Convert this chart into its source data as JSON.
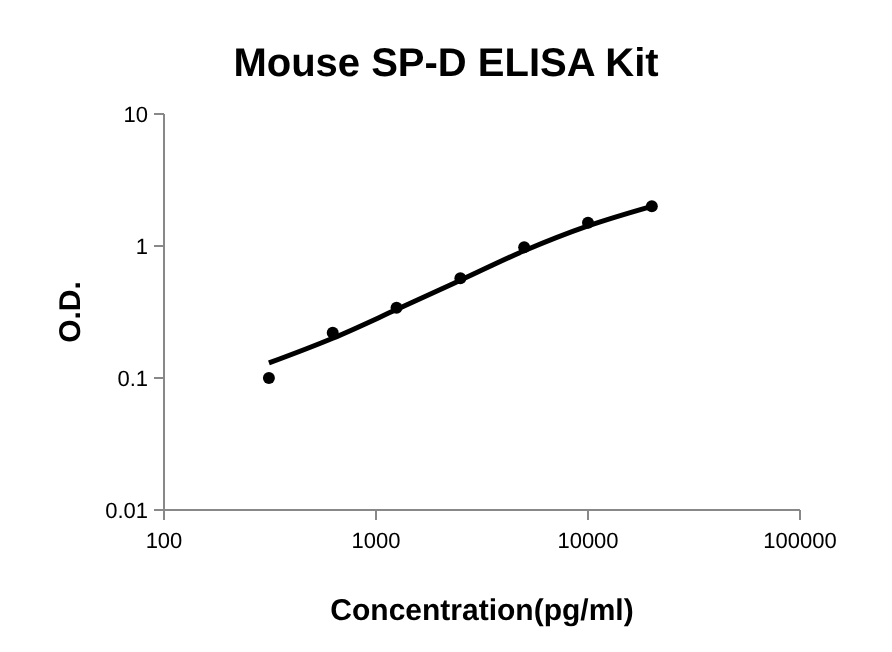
{
  "chart_data": {
    "type": "scatter",
    "title": "Mouse SP-D ELISA Kit",
    "xlabel": "Concentration(pg/ml)",
    "ylabel": "O.D.",
    "log": "xy",
    "xlim": [
      100,
      100000
    ],
    "ylim": [
      0.01,
      10
    ],
    "xticks": [
      100,
      1000,
      10000,
      100000
    ],
    "yticks": [
      0.01,
      0.1,
      1,
      10
    ],
    "grid": false,
    "series": [
      {
        "color": "#000000",
        "marker": "circle",
        "x": [
          312.5,
          625,
          1250,
          2500,
          5000,
          10000,
          20000
        ],
        "values": [
          0.1,
          0.22,
          0.34,
          0.57,
          0.98,
          1.5,
          2.0
        ]
      },
      {
        "type": "line",
        "color": "#000000",
        "marker": "none",
        "line_style": "solid",
        "x": [
          312.5,
          625,
          1250,
          2500,
          5000,
          10000,
          20000
        ],
        "values": [
          0.13,
          0.2,
          0.33,
          0.55,
          0.92,
          1.42,
          2.0
        ]
      }
    ]
  }
}
